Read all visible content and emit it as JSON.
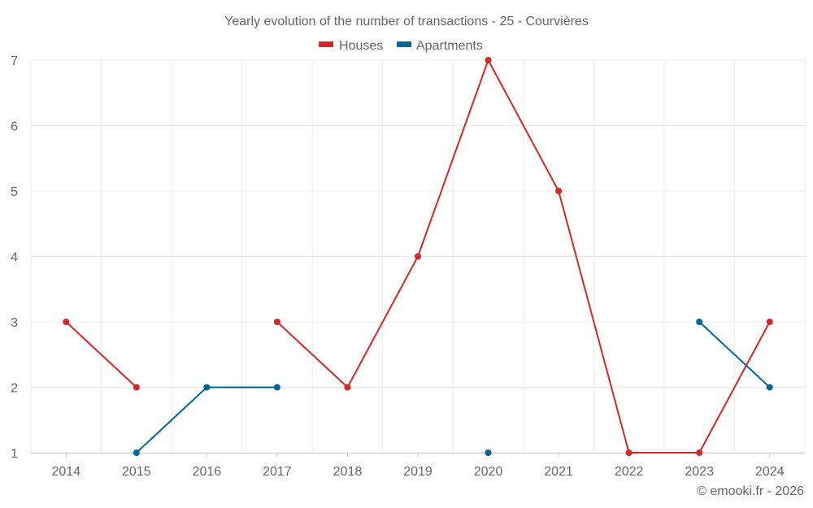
{
  "chart_data": {
    "type": "line",
    "title": "Yearly evolution of the number of transactions - 25 - Courvières",
    "categories": [
      "2014",
      "2015",
      "2016",
      "2017",
      "2018",
      "2019",
      "2020",
      "2021",
      "2022",
      "2023",
      "2024"
    ],
    "series": [
      {
        "name": "Houses",
        "color": "#d62728",
        "values": [
          3,
          2,
          null,
          3,
          2,
          4,
          7,
          5,
          1,
          1,
          3
        ]
      },
      {
        "name": "Apartments",
        "color": "#006699",
        "values": [
          null,
          1,
          2,
          2,
          null,
          null,
          1,
          null,
          null,
          3,
          2
        ]
      }
    ],
    "ylim": [
      1,
      7
    ],
    "yticks": [
      "1",
      "2",
      "3",
      "4",
      "5",
      "6",
      "7"
    ],
    "xlabel": "",
    "ylabel": "",
    "grid": true,
    "legend": "top-center"
  },
  "credit": "© emooki.fr - 2026"
}
